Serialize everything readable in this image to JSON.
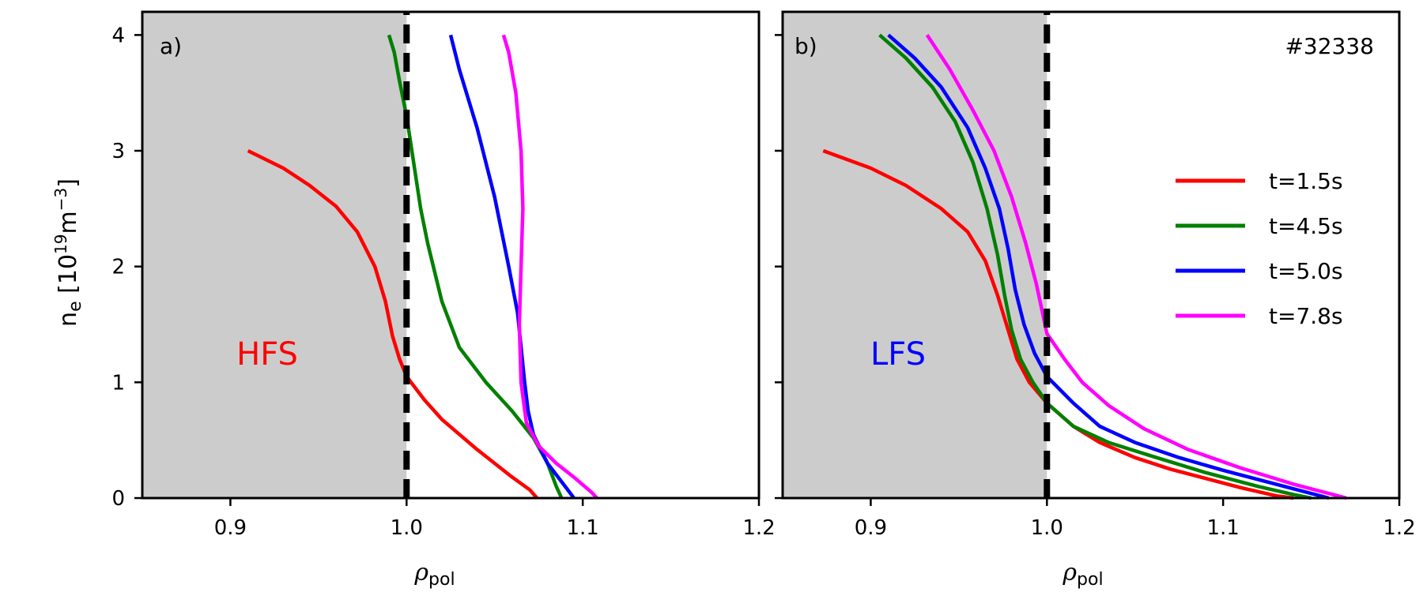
{
  "chart_data": {
    "type": "line",
    "ylabel": {
      "symbol": "n",
      "sub": "e",
      "unit_open": " [10",
      "unit_exp": "19",
      "unit_mid": "m",
      "unit_exp2": "−3",
      "unit_close": "]"
    },
    "shot_label": "#32338",
    "legend": [
      {
        "label": "t=1.5s",
        "color": "#ff0000"
      },
      {
        "label": "t=4.5s",
        "color": "#008000"
      },
      {
        "label": "t=5.0s",
        "color": "#0000ff"
      },
      {
        "label": "t=7.8s",
        "color": "#ff00ff"
      }
    ],
    "panels": [
      {
        "tag": "a)",
        "side_label": "HFS",
        "side_color": "#ff0000",
        "xlabel": {
          "symbol": "ρ",
          "sub": "pol"
        },
        "xlim": [
          0.85,
          1.2
        ],
        "ylim": [
          0,
          4.2
        ],
        "xticks": [
          "0.9",
          "1.0",
          "1.1",
          "1.2"
        ],
        "yticks": [
          "0",
          "1",
          "2",
          "3",
          "4"
        ],
        "shaded_region": [
          0.85,
          1.0
        ],
        "separatrix": 1.0,
        "series": [
          {
            "label": "t=1.5s",
            "color": "#ff0000",
            "points": [
              [
                0.91,
                3.0
              ],
              [
                0.93,
                2.85
              ],
              [
                0.945,
                2.7
              ],
              [
                0.96,
                2.52
              ],
              [
                0.972,
                2.3
              ],
              [
                0.982,
                2.0
              ],
              [
                0.988,
                1.7
              ],
              [
                0.992,
                1.4
              ],
              [
                0.996,
                1.2
              ],
              [
                1.0,
                1.05
              ],
              [
                1.01,
                0.85
              ],
              [
                1.02,
                0.68
              ],
              [
                1.03,
                0.55
              ],
              [
                1.04,
                0.42
              ],
              [
                1.05,
                0.3
              ],
              [
                1.06,
                0.18
              ],
              [
                1.07,
                0.07
              ],
              [
                1.074,
                0.0
              ]
            ]
          },
          {
            "label": "t=4.5s",
            "color": "#008000",
            "points": [
              [
                0.99,
                4.0
              ],
              [
                0.993,
                3.85
              ],
              [
                0.996,
                3.6
              ],
              [
                1.0,
                3.3
              ],
              [
                1.004,
                2.9
              ],
              [
                1.008,
                2.5
              ],
              [
                1.012,
                2.2
              ],
              [
                1.02,
                1.7
              ],
              [
                1.03,
                1.3
              ],
              [
                1.045,
                1.0
              ],
              [
                1.06,
                0.75
              ],
              [
                1.072,
                0.52
              ],
              [
                1.08,
                0.3
              ],
              [
                1.085,
                0.1
              ],
              [
                1.088,
                0.0
              ]
            ]
          },
          {
            "label": "t=5.0s",
            "color": "#0000ff",
            "points": [
              [
                1.025,
                4.0
              ],
              [
                1.03,
                3.7
              ],
              [
                1.04,
                3.2
              ],
              [
                1.05,
                2.6
              ],
              [
                1.058,
                2.0
              ],
              [
                1.063,
                1.6
              ],
              [
                1.067,
                1.0
              ],
              [
                1.069,
                0.75
              ],
              [
                1.072,
                0.55
              ],
              [
                1.08,
                0.3
              ],
              [
                1.09,
                0.1
              ],
              [
                1.095,
                0.0
              ]
            ]
          },
          {
            "label": "t=7.8s",
            "color": "#ff00ff",
            "points": [
              [
                1.055,
                4.0
              ],
              [
                1.058,
                3.85
              ],
              [
                1.062,
                3.5
              ],
              [
                1.065,
                3.0
              ],
              [
                1.066,
                2.5
              ],
              [
                1.065,
                2.0
              ],
              [
                1.064,
                1.5
              ],
              [
                1.065,
                1.0
              ],
              [
                1.068,
                0.65
              ],
              [
                1.075,
                0.45
              ],
              [
                1.085,
                0.3
              ],
              [
                1.095,
                0.18
              ],
              [
                1.105,
                0.05
              ],
              [
                1.108,
                0.0
              ]
            ]
          }
        ]
      },
      {
        "tag": "b)",
        "side_label": "LFS",
        "side_color": "#0000ff",
        "xlabel": {
          "symbol": "ρ",
          "sub": "pol"
        },
        "xlim": [
          0.85,
          1.2
        ],
        "ylim": [
          0,
          4.2
        ],
        "xticks": [
          "0.9",
          "1.0",
          "1.1",
          "1.2"
        ],
        "yticks": [],
        "shaded_region": [
          0.85,
          1.0
        ],
        "separatrix": 1.0,
        "series": [
          {
            "label": "t=1.5s",
            "color": "#ff0000",
            "points": [
              [
                0.873,
                3.0
              ],
              [
                0.9,
                2.85
              ],
              [
                0.92,
                2.7
              ],
              [
                0.94,
                2.5
              ],
              [
                0.955,
                2.3
              ],
              [
                0.965,
                2.05
              ],
              [
                0.972,
                1.75
              ],
              [
                0.978,
                1.45
              ],
              [
                0.983,
                1.2
              ],
              [
                0.99,
                1.0
              ],
              [
                1.0,
                0.82
              ],
              [
                1.015,
                0.62
              ],
              [
                1.03,
                0.48
              ],
              [
                1.05,
                0.35
              ],
              [
                1.07,
                0.25
              ],
              [
                1.09,
                0.17
              ],
              [
                1.11,
                0.09
              ],
              [
                1.13,
                0.02
              ],
              [
                1.14,
                0.0
              ]
            ]
          },
          {
            "label": "t=4.5s",
            "color": "#008000",
            "points": [
              [
                0.905,
                4.0
              ],
              [
                0.92,
                3.8
              ],
              [
                0.935,
                3.55
              ],
              [
                0.948,
                3.25
              ],
              [
                0.958,
                2.9
              ],
              [
                0.966,
                2.5
              ],
              [
                0.972,
                2.1
              ],
              [
                0.976,
                1.75
              ],
              [
                0.98,
                1.45
              ],
              [
                0.985,
                1.2
              ],
              [
                0.992,
                1.0
              ],
              [
                1.0,
                0.82
              ],
              [
                1.015,
                0.62
              ],
              [
                1.035,
                0.48
              ],
              [
                1.06,
                0.36
              ],
              [
                1.09,
                0.22
              ],
              [
                1.12,
                0.1
              ],
              [
                1.14,
                0.03
              ],
              [
                1.15,
                0.0
              ]
            ]
          },
          {
            "label": "t=5.0s",
            "color": "#0000ff",
            "points": [
              [
                0.91,
                4.0
              ],
              [
                0.925,
                3.8
              ],
              [
                0.94,
                3.55
              ],
              [
                0.955,
                3.2
              ],
              [
                0.965,
                2.85
              ],
              [
                0.973,
                2.5
              ],
              [
                0.978,
                2.15
              ],
              [
                0.982,
                1.8
              ],
              [
                0.987,
                1.5
              ],
              [
                0.993,
                1.25
              ],
              [
                1.0,
                1.05
              ],
              [
                1.015,
                0.82
              ],
              [
                1.03,
                0.62
              ],
              [
                1.05,
                0.48
              ],
              [
                1.075,
                0.35
              ],
              [
                1.1,
                0.24
              ],
              [
                1.13,
                0.12
              ],
              [
                1.155,
                0.02
              ],
              [
                1.16,
                0.0
              ]
            ]
          },
          {
            "label": "t=7.8s",
            "color": "#ff00ff",
            "points": [
              [
                0.932,
                4.0
              ],
              [
                0.945,
                3.7
              ],
              [
                0.958,
                3.35
              ],
              [
                0.97,
                3.0
              ],
              [
                0.98,
                2.6
              ],
              [
                0.988,
                2.2
              ],
              [
                0.994,
                1.85
              ],
              [
                1.0,
                1.42
              ],
              [
                1.01,
                1.2
              ],
              [
                1.02,
                1.0
              ],
              [
                1.035,
                0.8
              ],
              [
                1.055,
                0.6
              ],
              [
                1.08,
                0.42
              ],
              [
                1.11,
                0.26
              ],
              [
                1.14,
                0.12
              ],
              [
                1.165,
                0.02
              ],
              [
                1.17,
                0.0
              ]
            ]
          }
        ]
      }
    ]
  }
}
